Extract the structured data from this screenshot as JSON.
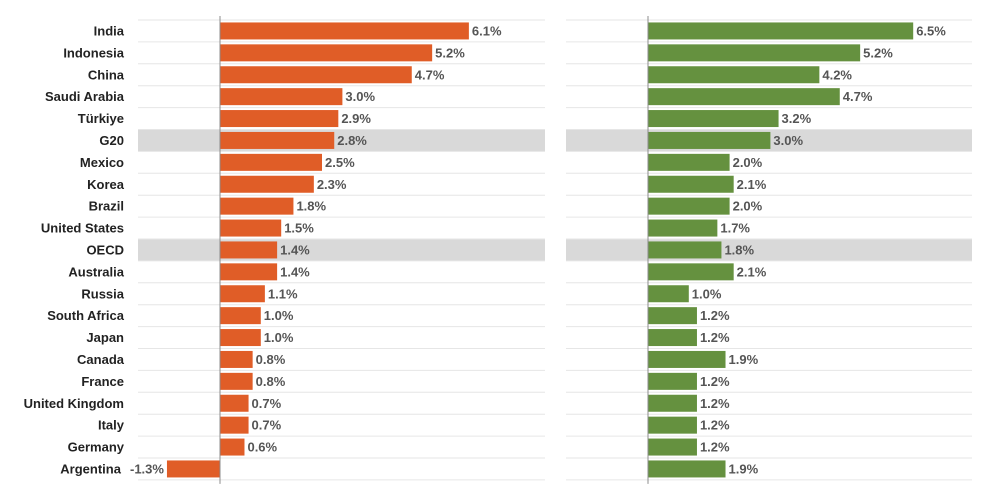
{
  "chart_data": [
    {
      "type": "bar",
      "orientation": "horizontal",
      "title": "",
      "xlabel": "",
      "ylabel": "",
      "color": "#e05d27",
      "highlight_color": "#d9d9d9",
      "highlighted": [
        "G20",
        "OECD"
      ],
      "grid": true,
      "categories": [
        "India",
        "Indonesia",
        "China",
        "Saudi Arabia",
        "Türkiye",
        "G20",
        "Mexico",
        "Korea",
        "Brazil",
        "United States",
        "OECD",
        "Australia",
        "Russia",
        "South Africa",
        "Japan",
        "Canada",
        "France",
        "United Kingdom",
        "Italy",
        "Germany",
        "Argentina"
      ],
      "values": [
        6.1,
        5.2,
        4.7,
        3.0,
        2.9,
        2.8,
        2.5,
        2.3,
        1.8,
        1.5,
        1.4,
        1.4,
        1.1,
        1.0,
        1.0,
        0.8,
        0.8,
        0.7,
        0.7,
        0.6,
        -1.3
      ],
      "value_labels": [
        "6.1%",
        "5.2%",
        "4.7%",
        "3.0%",
        "2.9%",
        "2.8%",
        "2.5%",
        "2.3%",
        "1.8%",
        "1.5%",
        "1.4%",
        "1.4%",
        "1.1%",
        "1.0%",
        "1.0%",
        "0.8%",
        "0.8%",
        "0.7%",
        "0.7%",
        "0.6%",
        "-1.3%"
      ]
    },
    {
      "type": "bar",
      "orientation": "horizontal",
      "title": "",
      "xlabel": "",
      "ylabel": "",
      "color": "#65913f",
      "highlight_color": "#d9d9d9",
      "highlighted": [
        "G20",
        "OECD"
      ],
      "grid": true,
      "categories": [
        "India",
        "Indonesia",
        "China",
        "Saudi Arabia",
        "Türkiye",
        "G20",
        "Mexico",
        "Korea",
        "Brazil",
        "United States",
        "OECD",
        "Australia",
        "Russia",
        "South Africa",
        "Japan",
        "Canada",
        "France",
        "United Kingdom",
        "Italy",
        "Germany",
        "Argentina"
      ],
      "values": [
        6.5,
        5.2,
        4.2,
        4.7,
        3.2,
        3.0,
        2.0,
        2.1,
        2.0,
        1.7,
        1.8,
        2.1,
        1.0,
        1.2,
        1.2,
        1.9,
        1.2,
        1.2,
        1.2,
        1.2,
        1.9
      ],
      "value_labels": [
        "6.5%",
        "5.2%",
        "4.2%",
        "4.7%",
        "3.2%",
        "3.0%",
        "2.0%",
        "2.1%",
        "2.0%",
        "1.7%",
        "1.8%",
        "2.1%",
        "1.0%",
        "1.2%",
        "1.2%",
        "1.9%",
        "1.2%",
        "1.2%",
        "1.2%",
        "1.2%",
        "1.9%"
      ]
    }
  ]
}
